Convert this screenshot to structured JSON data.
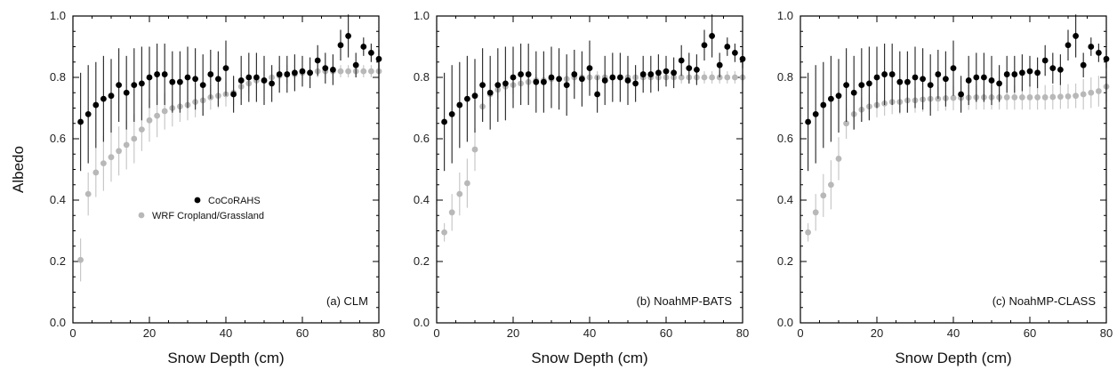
{
  "colors": {
    "observed": "#000000",
    "model": "#b8b8b8",
    "model_bar": "#c8c8c8",
    "observed_bar": "#333333"
  },
  "chart_data": [
    {
      "type": "scatter",
      "panel_label": "(a) CLM",
      "xlabel": "Snow Depth (cm)",
      "ylabel": "Albedo",
      "xlim": [
        0,
        80
      ],
      "ylim": [
        0.0,
        1.0
      ],
      "xticks": [
        "0",
        "20",
        "40",
        "60",
        "80"
      ],
      "yticks": [
        "0.0",
        "0.2",
        "0.4",
        "0.6",
        "0.8",
        "1.0"
      ],
      "legend": {
        "placement": "center-left",
        "entries": [
          "CoCoRAHS",
          "WRF Cropland/Grassland"
        ]
      },
      "series": [
        {
          "name": "CoCoRAHS",
          "x": [
            2,
            4,
            6,
            8,
            10,
            12,
            14,
            16,
            18,
            20,
            22,
            24,
            26,
            28,
            30,
            32,
            34,
            36,
            38,
            40,
            42,
            44,
            46,
            48,
            50,
            52,
            54,
            56,
            58,
            60,
            62,
            64,
            66,
            68,
            70,
            72,
            74,
            76,
            78,
            80
          ],
          "y": [
            0.655,
            0.68,
            0.71,
            0.73,
            0.74,
            0.775,
            0.75,
            0.775,
            0.78,
            0.8,
            0.81,
            0.81,
            0.785,
            0.785,
            0.8,
            0.795,
            0.775,
            0.81,
            0.795,
            0.83,
            0.745,
            0.79,
            0.8,
            0.8,
            0.79,
            0.78,
            0.81,
            0.81,
            0.815,
            0.82,
            0.815,
            0.855,
            0.83,
            0.825,
            0.905,
            0.935,
            0.84,
            0.9,
            0.88,
            0.86
          ],
          "err": [
            0.16,
            0.16,
            0.14,
            0.14,
            0.12,
            0.12,
            0.12,
            0.12,
            0.12,
            0.1,
            0.1,
            0.1,
            0.1,
            0.1,
            0.1,
            0.1,
            0.1,
            0.08,
            0.09,
            0.09,
            0.06,
            0.08,
            0.08,
            0.08,
            0.08,
            0.06,
            0.06,
            0.06,
            0.06,
            0.05,
            0.05,
            0.05,
            0.05,
            0.05,
            0.05,
            0.07,
            0.04,
            0.03,
            0.03,
            0.03
          ]
        },
        {
          "name": "WRF Cropland/Grassland",
          "x": [
            2,
            4,
            6,
            8,
            10,
            12,
            14,
            16,
            18,
            20,
            22,
            24,
            26,
            28,
            30,
            32,
            34,
            36,
            38,
            40,
            42,
            44,
            46,
            48,
            50,
            52,
            54,
            56,
            58,
            60,
            62,
            64,
            66,
            68,
            70,
            72,
            74,
            76,
            78,
            80
          ],
          "y": [
            0.205,
            0.42,
            0.49,
            0.52,
            0.54,
            0.56,
            0.58,
            0.6,
            0.63,
            0.66,
            0.675,
            0.69,
            0.7,
            0.705,
            0.71,
            0.72,
            0.725,
            0.735,
            0.74,
            0.745,
            0.75,
            0.77,
            0.78,
            0.79,
            0.79,
            0.8,
            0.805,
            0.81,
            0.81,
            0.815,
            0.815,
            0.82,
            0.82,
            0.82,
            0.82,
            0.82,
            0.82,
            0.82,
            0.82,
            0.82
          ],
          "err": [
            0.07,
            0.07,
            0.08,
            0.09,
            0.08,
            0.08,
            0.08,
            0.08,
            0.07,
            0.07,
            0.07,
            0.06,
            0.06,
            0.05,
            0.05,
            0.05,
            0.05,
            0.04,
            0.04,
            0.04,
            0.04,
            0.04,
            0.03,
            0.03,
            0.03,
            0.03,
            0.03,
            0.03,
            0.03,
            0.02,
            0.02,
            0.02,
            0.02,
            0.02,
            0.02,
            0.02,
            0.02,
            0.02,
            0.02,
            0.02
          ]
        }
      ]
    },
    {
      "type": "scatter",
      "panel_label": "(b) NoahMP-BATS",
      "xlabel": "Snow Depth (cm)",
      "ylabel": "",
      "xlim": [
        0,
        80
      ],
      "ylim": [
        0.0,
        1.0
      ],
      "xticks": [
        "0",
        "20",
        "40",
        "60",
        "80"
      ],
      "yticks": [
        "0.0",
        "0.2",
        "0.4",
        "0.6",
        "0.8",
        "1.0"
      ],
      "series": [
        {
          "name": "CoCoRAHS",
          "x": [
            2,
            4,
            6,
            8,
            10,
            12,
            14,
            16,
            18,
            20,
            22,
            24,
            26,
            28,
            30,
            32,
            34,
            36,
            38,
            40,
            42,
            44,
            46,
            48,
            50,
            52,
            54,
            56,
            58,
            60,
            62,
            64,
            66,
            68,
            70,
            72,
            74,
            76,
            78,
            80
          ],
          "y": [
            0.655,
            0.68,
            0.71,
            0.73,
            0.74,
            0.775,
            0.75,
            0.775,
            0.78,
            0.8,
            0.81,
            0.81,
            0.785,
            0.785,
            0.8,
            0.795,
            0.775,
            0.81,
            0.795,
            0.83,
            0.745,
            0.79,
            0.8,
            0.8,
            0.79,
            0.78,
            0.81,
            0.81,
            0.815,
            0.82,
            0.815,
            0.855,
            0.83,
            0.825,
            0.905,
            0.935,
            0.84,
            0.9,
            0.88,
            0.86
          ],
          "err": [
            0.16,
            0.16,
            0.14,
            0.14,
            0.12,
            0.12,
            0.12,
            0.12,
            0.12,
            0.1,
            0.1,
            0.1,
            0.1,
            0.1,
            0.1,
            0.1,
            0.1,
            0.08,
            0.09,
            0.09,
            0.06,
            0.08,
            0.08,
            0.08,
            0.08,
            0.06,
            0.06,
            0.06,
            0.06,
            0.05,
            0.05,
            0.05,
            0.05,
            0.05,
            0.05,
            0.07,
            0.04,
            0.03,
            0.03,
            0.03
          ]
        },
        {
          "name": "WRF Cropland/Grassland",
          "x": [
            2,
            4,
            6,
            8,
            10,
            12,
            14,
            16,
            18,
            20,
            22,
            24,
            26,
            28,
            30,
            32,
            34,
            36,
            38,
            40,
            42,
            44,
            46,
            48,
            50,
            52,
            54,
            56,
            58,
            60,
            62,
            64,
            66,
            68,
            70,
            72,
            74,
            76,
            78,
            80
          ],
          "y": [
            0.295,
            0.36,
            0.42,
            0.455,
            0.565,
            0.705,
            0.745,
            0.76,
            0.77,
            0.775,
            0.78,
            0.785,
            0.79,
            0.79,
            0.795,
            0.795,
            0.795,
            0.8,
            0.8,
            0.8,
            0.8,
            0.8,
            0.8,
            0.8,
            0.8,
            0.8,
            0.8,
            0.8,
            0.8,
            0.8,
            0.8,
            0.8,
            0.8,
            0.8,
            0.8,
            0.8,
            0.8,
            0.8,
            0.8,
            0.8
          ],
          "err": [
            0.03,
            0.06,
            0.07,
            0.08,
            0.07,
            0.05,
            0.04,
            0.03,
            0.03,
            0.03,
            0.02,
            0.02,
            0.02,
            0.02,
            0.02,
            0.02,
            0.02,
            0.02,
            0.02,
            0.02,
            0.02,
            0.02,
            0.02,
            0.02,
            0.02,
            0.02,
            0.02,
            0.02,
            0.02,
            0.02,
            0.02,
            0.02,
            0.02,
            0.02,
            0.02,
            0.02,
            0.02,
            0.02,
            0.02,
            0.02
          ]
        }
      ]
    },
    {
      "type": "scatter",
      "panel_label": "(c) NoahMP-CLASS",
      "xlabel": "Snow Depth (cm)",
      "ylabel": "",
      "xlim": [
        0,
        80
      ],
      "ylim": [
        0.0,
        1.0
      ],
      "xticks": [
        "0",
        "20",
        "40",
        "60",
        "80"
      ],
      "yticks": [
        "0.0",
        "0.2",
        "0.4",
        "0.6",
        "0.8",
        "1.0"
      ],
      "series": [
        {
          "name": "CoCoRAHS",
          "x": [
            2,
            4,
            6,
            8,
            10,
            12,
            14,
            16,
            18,
            20,
            22,
            24,
            26,
            28,
            30,
            32,
            34,
            36,
            38,
            40,
            42,
            44,
            46,
            48,
            50,
            52,
            54,
            56,
            58,
            60,
            62,
            64,
            66,
            68,
            70,
            72,
            74,
            76,
            78,
            80
          ],
          "y": [
            0.655,
            0.68,
            0.71,
            0.73,
            0.74,
            0.775,
            0.75,
            0.775,
            0.78,
            0.8,
            0.81,
            0.81,
            0.785,
            0.785,
            0.8,
            0.795,
            0.775,
            0.81,
            0.795,
            0.83,
            0.745,
            0.79,
            0.8,
            0.8,
            0.79,
            0.78,
            0.81,
            0.81,
            0.815,
            0.82,
            0.815,
            0.855,
            0.83,
            0.825,
            0.905,
            0.935,
            0.84,
            0.9,
            0.88,
            0.86
          ],
          "err": [
            0.16,
            0.16,
            0.14,
            0.14,
            0.12,
            0.12,
            0.12,
            0.12,
            0.12,
            0.1,
            0.1,
            0.1,
            0.1,
            0.1,
            0.1,
            0.1,
            0.1,
            0.08,
            0.09,
            0.09,
            0.06,
            0.08,
            0.08,
            0.08,
            0.08,
            0.06,
            0.06,
            0.06,
            0.06,
            0.05,
            0.05,
            0.05,
            0.05,
            0.05,
            0.05,
            0.07,
            0.04,
            0.03,
            0.03,
            0.03
          ]
        },
        {
          "name": "WRF Cropland/Grassland",
          "x": [
            2,
            4,
            6,
            8,
            10,
            12,
            14,
            16,
            18,
            20,
            22,
            24,
            26,
            28,
            30,
            32,
            34,
            36,
            38,
            40,
            42,
            44,
            46,
            48,
            50,
            52,
            54,
            56,
            58,
            60,
            62,
            64,
            66,
            68,
            70,
            72,
            74,
            76,
            78,
            80
          ],
          "y": [
            0.295,
            0.36,
            0.415,
            0.45,
            0.535,
            0.65,
            0.68,
            0.695,
            0.705,
            0.71,
            0.715,
            0.72,
            0.72,
            0.725,
            0.725,
            0.728,
            0.73,
            0.73,
            0.732,
            0.733,
            0.733,
            0.734,
            0.735,
            0.735,
            0.735,
            0.735,
            0.735,
            0.735,
            0.735,
            0.735,
            0.735,
            0.735,
            0.736,
            0.737,
            0.738,
            0.74,
            0.745,
            0.75,
            0.755,
            0.77
          ],
          "err": [
            0.03,
            0.06,
            0.07,
            0.08,
            0.07,
            0.05,
            0.05,
            0.04,
            0.04,
            0.04,
            0.04,
            0.04,
            0.04,
            0.04,
            0.04,
            0.04,
            0.04,
            0.04,
            0.04,
            0.04,
            0.04,
            0.04,
            0.04,
            0.04,
            0.04,
            0.04,
            0.04,
            0.04,
            0.04,
            0.04,
            0.04,
            0.04,
            0.04,
            0.04,
            0.04,
            0.04,
            0.05,
            0.05,
            0.05,
            0.05
          ]
        }
      ]
    }
  ]
}
